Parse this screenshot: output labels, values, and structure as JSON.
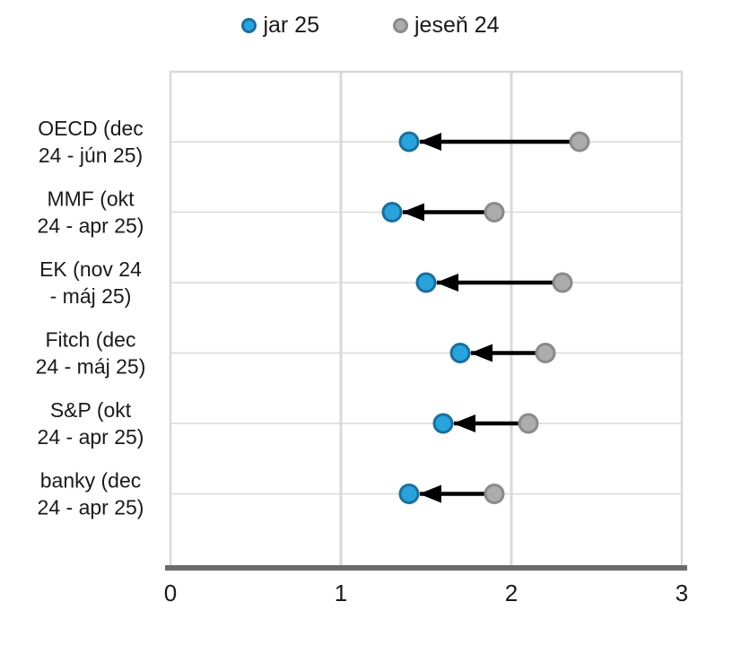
{
  "legend": {
    "items": [
      {
        "label": "jar 25",
        "fill": "#29A3DC",
        "stroke": "#1C6E9C"
      },
      {
        "label": "jeseň 24",
        "fill": "#ACACAC",
        "stroke": "#8A8A8A"
      }
    ]
  },
  "chart_data": {
    "type": "scatter",
    "subtype": "dumbbell-arrow",
    "title": "",
    "xlabel": "",
    "ylabel": "",
    "xlim": [
      0,
      3
    ],
    "xticks": [
      "0",
      "1",
      "2",
      "3"
    ],
    "grid": {
      "vertical_gridlines_at": [
        1,
        2
      ],
      "horizontal_gridline_per_category": true
    },
    "legend_position": "top",
    "arrow_direction": "jeseň 24 → jar 25",
    "categories": [
      {
        "lines": [
          "OECD (dec",
          "24 - jún 25)"
        ]
      },
      {
        "lines": [
          "MMF (okt",
          "24 - apr 25)"
        ]
      },
      {
        "lines": [
          "EK (nov 24",
          "- máj 25)"
        ]
      },
      {
        "lines": [
          "Fitch (dec",
          "24 - máj 25)"
        ]
      },
      {
        "lines": [
          "S&P (okt",
          "24 - apr 25)"
        ]
      },
      {
        "lines": [
          "banky (dec",
          "24 - apr 25)"
        ]
      }
    ],
    "series": [
      {
        "name": "jar 25",
        "fill": "#29A3DC",
        "stroke": "#1C6E9C",
        "values": [
          1.4,
          1.3,
          1.5,
          1.7,
          1.6,
          1.4
        ]
      },
      {
        "name": "jeseň 24",
        "fill": "#ACACAC",
        "stroke": "#8A8A8A",
        "values": [
          2.4,
          1.9,
          2.3,
          2.2,
          2.1,
          1.9
        ]
      }
    ]
  },
  "colors": {
    "gridline": "#D9D9D9",
    "plot_border": "#D9D9D9",
    "axis_line": "#6B6B6B",
    "arrow": "#000000",
    "text": "#1A1A1A",
    "background": "#FFFFFF"
  }
}
